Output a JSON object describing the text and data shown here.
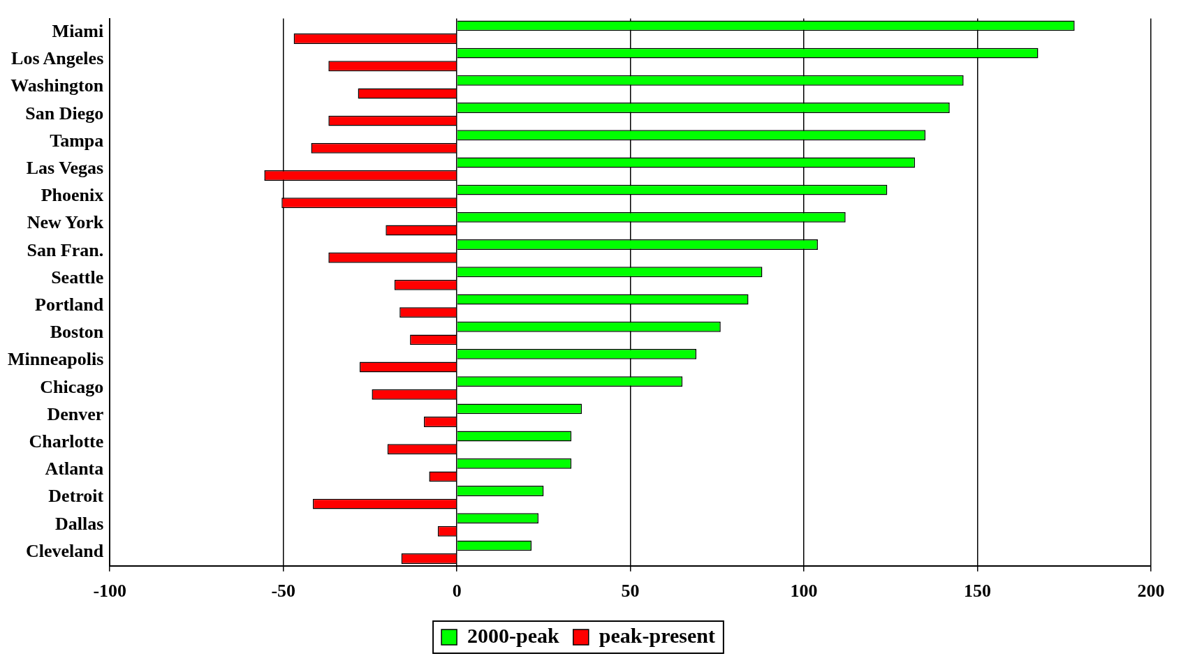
{
  "chart_data": {
    "type": "bar",
    "orientation": "horizontal",
    "categories": [
      "Miami",
      "Los Angeles",
      "Washington",
      "San Diego",
      "Tampa",
      "Las Vegas",
      "Phoenix",
      "New York",
      "San Fran.",
      "Seattle",
      "Portland",
      "Boston",
      "Minneapolis",
      "Chicago",
      "Denver",
      "Charlotte",
      "Atlanta",
      "Detroit",
      "Dallas",
      "Cleveland"
    ],
    "series": [
      {
        "name": "2000-peak",
        "color": "#00ff00",
        "values": [
          178,
          167.5,
          146,
          142,
          135,
          132,
          124,
          112,
          104,
          88,
          84,
          76,
          69,
          65,
          36,
          33,
          33,
          25,
          23.5,
          21.5
        ]
      },
      {
        "name": "peak-present",
        "color": "#ff0000",
        "values": [
          -47,
          -37,
          -28.5,
          -37,
          -42,
          -55.5,
          -50.5,
          -20.5,
          -37,
          -18,
          -16.5,
          -13.5,
          -28,
          -24.5,
          -9.5,
          -20,
          -8,
          -41.5,
          -5.5,
          -16
        ]
      }
    ],
    "xlim": [
      -100,
      200
    ],
    "xticks": [
      -100,
      -50,
      0,
      50,
      100,
      150,
      200
    ],
    "grid": "x",
    "legend": "bottom"
  }
}
